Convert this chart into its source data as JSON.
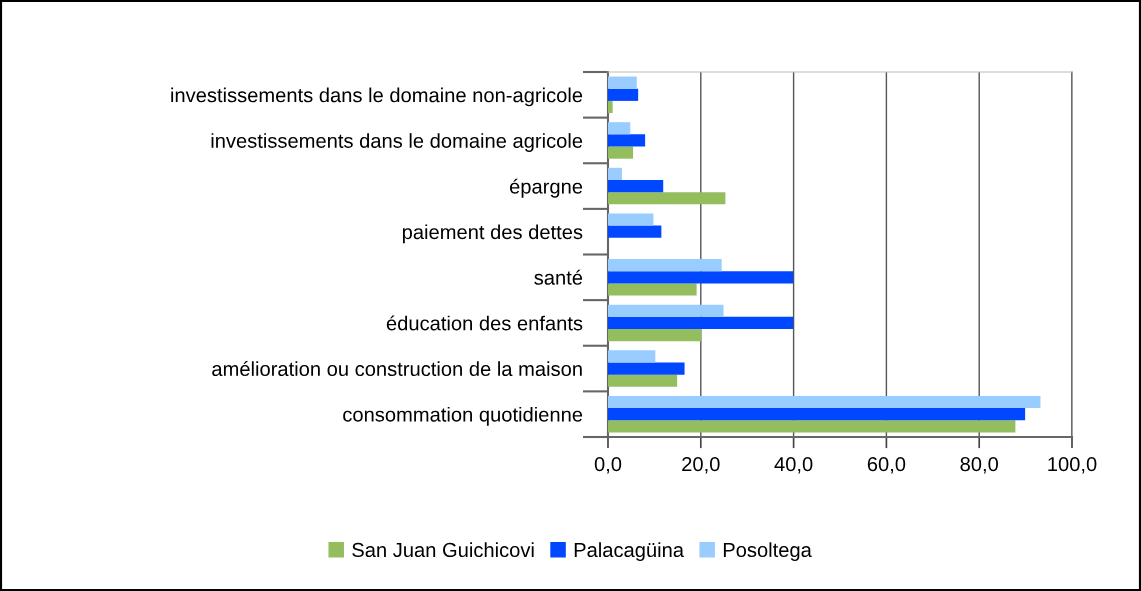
{
  "chart_data": {
    "type": "bar",
    "orientation": "horizontal",
    "categories": [
      "investissements dans le domaine non-agricole",
      "investissements dans le domaine agricole",
      "épargne",
      "paiement des dettes",
      "santé",
      "éducation des enfants",
      "amélioration ou construction de la maison",
      "consommation quotidienne"
    ],
    "series": [
      {
        "name": "San Juan Guichicovi",
        "color": "#94bd5e",
        "values": [
          1.0,
          5.4,
          25.3,
          0,
          19.1,
          20.1,
          14.9,
          87.8
        ]
      },
      {
        "name": "Palacagüina",
        "color": "#0047ff",
        "values": [
          6.5,
          8.0,
          11.9,
          11.5,
          39.9,
          39.9,
          16.5,
          89.9
        ]
      },
      {
        "name": "Posoltega",
        "color": "#99ccff",
        "values": [
          6.2,
          4.8,
          3.0,
          9.8,
          24.5,
          24.9,
          10.2,
          93.2
        ]
      }
    ],
    "xlim": [
      0,
      100
    ],
    "xticks": [
      {
        "value": 0,
        "label": "0,0"
      },
      {
        "value": 20,
        "label": "20,0"
      },
      {
        "value": 40,
        "label": "40,0"
      },
      {
        "value": 60,
        "label": "60,0"
      },
      {
        "value": 80,
        "label": "80,0"
      },
      {
        "value": 100,
        "label": "100,0"
      }
    ],
    "grid": "x",
    "legend": "bottom"
  }
}
